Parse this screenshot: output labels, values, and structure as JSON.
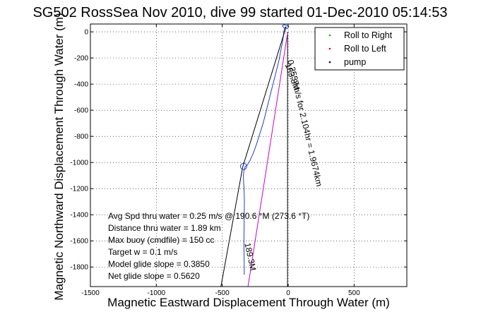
{
  "chart_data": {
    "type": "line",
    "title": "SG502 RossSea Nov 2010, dive 99 started 01-Dec-2010 05:14:53",
    "xlabel": "Magnetic Eastward Displacement Through Water (m)",
    "ylabel": "Magnetic Northward Displacement Through Water (m)",
    "xlim": [
      -1500,
      900
    ],
    "ylim": [
      -1950,
      60
    ],
    "xticks": [
      -1500,
      -1000,
      -500,
      0,
      500
    ],
    "yticks": [
      0,
      -200,
      -400,
      -600,
      -800,
      -1000,
      -1200,
      -1400,
      -1600,
      -1800
    ],
    "grid": true,
    "legend_position": "top-right",
    "legend": [
      {
        "label": "Roll to Right",
        "color": "#00cc00",
        "marker": "dot"
      },
      {
        "label": "Roll to Left",
        "color": "#ff0000",
        "marker": "dot"
      },
      {
        "label": "pump",
        "color": "#000000",
        "marker": "dot"
      }
    ],
    "series": [
      {
        "name": "track",
        "color": "#1f3fcc",
        "x": [
          -20,
          -30,
          -40,
          -55,
          -70,
          -90,
          -110,
          -130,
          -150,
          -170,
          -190,
          -215,
          -240,
          -265,
          -290,
          -310,
          -325,
          -335,
          -340,
          -338,
          -335,
          -333,
          -332,
          -333,
          -334,
          -335,
          -336,
          -335,
          -334,
          -333,
          -333
        ],
        "y": [
          40,
          20,
          -60,
          -140,
          -220,
          -300,
          -380,
          -460,
          -540,
          -620,
          -700,
          -780,
          -860,
          -930,
          -985,
          -1020,
          -1030,
          -1060,
          -1100,
          -1150,
          -1200,
          -1250,
          -1300,
          -1380,
          -1460,
          -1540,
          -1620,
          -1700,
          -1760,
          -1820,
          -1860
        ]
      },
      {
        "name": "dive start",
        "color": "#1f3fcc",
        "x": [
          -30,
          -45,
          -35,
          -10,
          5,
          -5,
          -20,
          -30
        ],
        "y": [
          30,
          45,
          55,
          50,
          40,
          25,
          28,
          30
        ]
      },
      {
        "name": "surface line",
        "color": "#000000",
        "x": [
          -345,
          -15
        ],
        "y": [
          -1035,
          40
        ]
      },
      {
        "name": "current line",
        "color": "#000000",
        "x": [
          -345,
          -510
        ],
        "y": [
          -1035,
          -1950
        ]
      },
      {
        "name": "vertical marker",
        "color": "#000000",
        "x": [
          -5,
          -5
        ],
        "y": [
          0,
          -1950
        ]
      },
      {
        "name": "glide line",
        "color": "#cc00cc",
        "x": [
          -5,
          -305
        ],
        "y": [
          -10,
          -1950
        ]
      }
    ],
    "circle_marker": {
      "x": -338,
      "y": -1030
    },
    "segment_labels": [
      {
        "text": "183.3M",
        "x": -25,
        "y": -250,
        "rotation": 70
      },
      {
        "text": "0.2557m/s for 2.104hr = 1.9674km",
        "x": -5,
        "y": -220,
        "rotation": 77
      },
      {
        "text": "189.3M",
        "x": -330,
        "y": -1620,
        "rotation": 78
      }
    ],
    "annotations": [
      "Avg Spd thru water = 0.25 m/s @ 190.6 °M (273.6 °T)",
      "Distance thru water = 1.89 km",
      "Max buoy (cmdfile) = 150 cc",
      "Target w = 0.1 m/s",
      "Model glide slope = 0.3850",
      "Net glide slope = 0.5620"
    ]
  }
}
